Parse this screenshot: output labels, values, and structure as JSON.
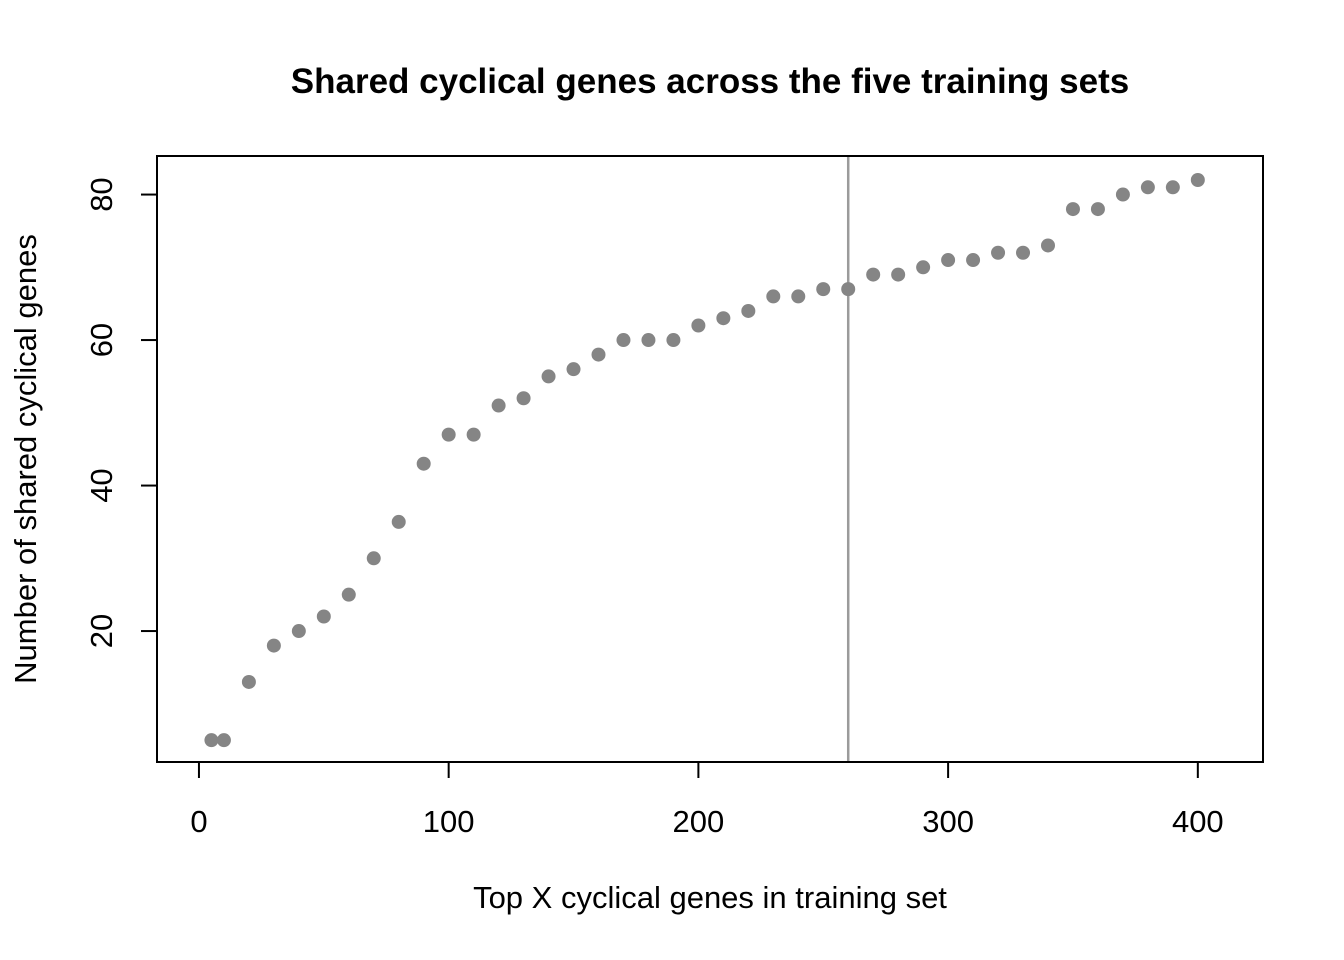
{
  "chart_data": {
    "type": "scatter",
    "title": "Shared cyclical genes across the five training sets",
    "xlabel": "Top X cyclical genes in training set",
    "ylabel": "Number of shared cyclical genes",
    "x": [
      5,
      10,
      20,
      30,
      40,
      50,
      60,
      70,
      80,
      90,
      100,
      110,
      120,
      130,
      140,
      150,
      160,
      170,
      180,
      190,
      200,
      210,
      220,
      230,
      240,
      250,
      260,
      270,
      280,
      290,
      300,
      310,
      320,
      330,
      340,
      350,
      360,
      370,
      380,
      390,
      400
    ],
    "y": [
      5,
      5,
      13,
      18,
      20,
      22,
      25,
      30,
      35,
      43,
      47,
      47,
      51,
      52,
      55,
      56,
      58,
      60,
      60,
      60,
      62,
      63,
      64,
      66,
      66,
      67,
      67,
      69,
      69,
      70,
      71,
      71,
      72,
      72,
      73,
      78,
      78,
      80,
      81,
      81,
      82
    ],
    "x_ticks": [
      0,
      100,
      200,
      300,
      400
    ],
    "y_ticks": [
      20,
      40,
      60,
      80
    ],
    "xlim": [
      -16.8,
      426.1
    ],
    "ylim": [
      2.0,
      85.3
    ],
    "vline_x": 260,
    "grid": false,
    "legend": null,
    "point_color": "#858585",
    "vline_color": "#9b9b9b",
    "axis_color": "#000000",
    "background_color": "#ffffff"
  }
}
